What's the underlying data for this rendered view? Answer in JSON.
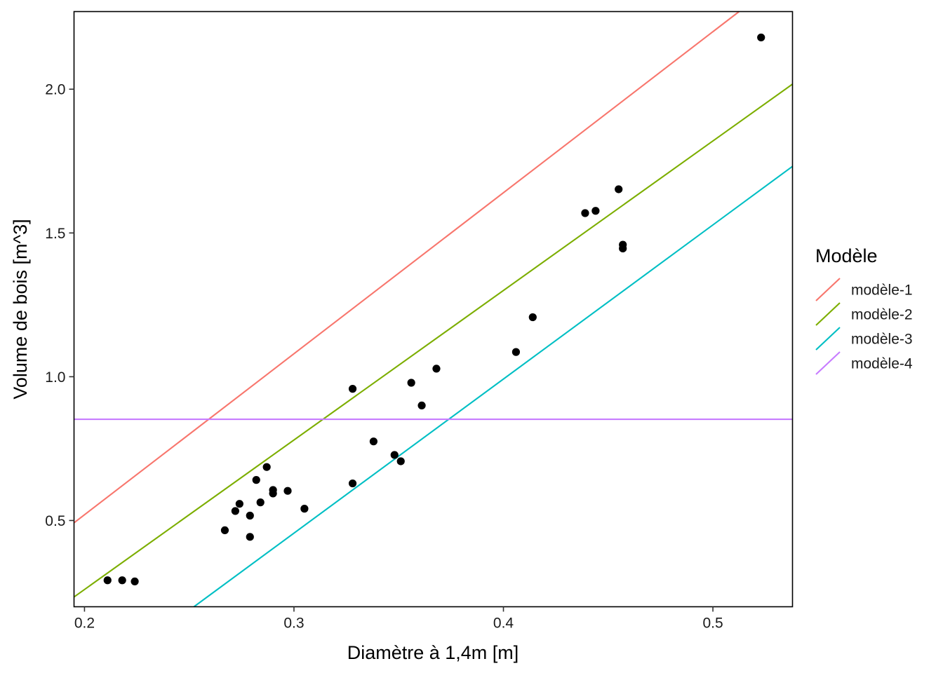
{
  "chart_data": {
    "type": "scatter",
    "xlabel": "Diamètre à 1,4m  [m]",
    "ylabel": "Volume de bois  [m^3]",
    "xlim": [
      0.195,
      0.538
    ],
    "ylim": [
      0.2,
      2.27
    ],
    "x_ticks": [
      {
        "value": 0.2,
        "label": "0.2"
      },
      {
        "value": 0.3,
        "label": "0.3"
      },
      {
        "value": 0.4,
        "label": "0.4"
      },
      {
        "value": 0.5,
        "label": "0.5"
      }
    ],
    "y_ticks": [
      {
        "value": 0.5,
        "label": "0.5"
      },
      {
        "value": 1.0,
        "label": "1.0"
      },
      {
        "value": 1.5,
        "label": "1.5"
      },
      {
        "value": 2.0,
        "label": "2.0"
      }
    ],
    "grid": false,
    "legend": {
      "title": "Modèle",
      "position": "right"
    },
    "points": [
      {
        "x": 0.211,
        "y": 0.292
      },
      {
        "x": 0.218,
        "y": 0.292
      },
      {
        "x": 0.224,
        "y": 0.288
      },
      {
        "x": 0.267,
        "y": 0.466
      },
      {
        "x": 0.272,
        "y": 0.533
      },
      {
        "x": 0.274,
        "y": 0.558
      },
      {
        "x": 0.279,
        "y": 0.517
      },
      {
        "x": 0.279,
        "y": 0.443
      },
      {
        "x": 0.282,
        "y": 0.641
      },
      {
        "x": 0.284,
        "y": 0.563
      },
      {
        "x": 0.287,
        "y": 0.686
      },
      {
        "x": 0.29,
        "y": 0.594
      },
      {
        "x": 0.29,
        "y": 0.606
      },
      {
        "x": 0.297,
        "y": 0.603
      },
      {
        "x": 0.305,
        "y": 0.541
      },
      {
        "x": 0.328,
        "y": 0.958
      },
      {
        "x": 0.328,
        "y": 0.629
      },
      {
        "x": 0.338,
        "y": 0.775
      },
      {
        "x": 0.348,
        "y": 0.728
      },
      {
        "x": 0.351,
        "y": 0.706
      },
      {
        "x": 0.356,
        "y": 0.979
      },
      {
        "x": 0.361,
        "y": 0.9
      },
      {
        "x": 0.368,
        "y": 1.028
      },
      {
        "x": 0.406,
        "y": 1.086
      },
      {
        "x": 0.414,
        "y": 1.207
      },
      {
        "x": 0.439,
        "y": 1.569
      },
      {
        "x": 0.444,
        "y": 1.577
      },
      {
        "x": 0.455,
        "y": 1.652
      },
      {
        "x": 0.457,
        "y": 1.459
      },
      {
        "x": 0.457,
        "y": 1.446
      },
      {
        "x": 0.523,
        "y": 2.18
      }
    ],
    "series": [
      {
        "name": "modèle-1",
        "color": "#F8766D",
        "intercept": -0.6,
        "slope": 5.6
      },
      {
        "name": "modèle-2",
        "color": "#7CAE00",
        "intercept": -0.78,
        "slope": 5.2
      },
      {
        "name": "modèle-3",
        "color": "#00BFC4",
        "intercept": -1.152,
        "slope": 5.36
      },
      {
        "name": "modèle-4",
        "color": "#C77CFF",
        "intercept": 0.852,
        "slope": 0
      }
    ]
  }
}
